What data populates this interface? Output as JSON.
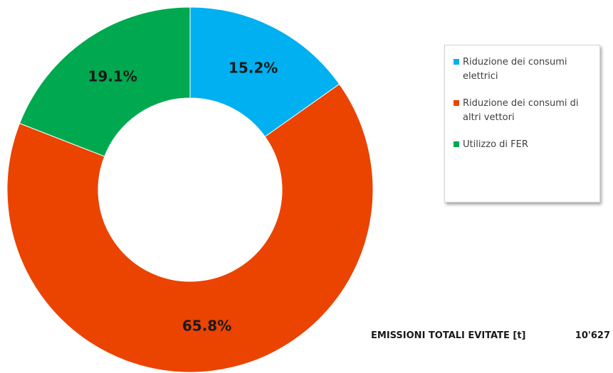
{
  "chart_data": {
    "type": "pie",
    "donut": true,
    "title": "",
    "start_angle_deg": 0,
    "direction": "clockwise",
    "slices": [
      {
        "name": "Riduzione dei consumi elettrici",
        "value": 15.2,
        "label": "15.2%",
        "color": "#00b0f0"
      },
      {
        "name": "Riduzione dei consumi di altri vettori",
        "value": 65.8,
        "label": "65.8%",
        "color": "#ea4400"
      },
      {
        "name": "Utilizzo di FER",
        "value": 19.1,
        "label": "19.1%",
        "color": "#00a84f"
      }
    ],
    "legend_placement": "right"
  },
  "summary": {
    "label": "EMISSIONI TOTALI EVITATE [t]",
    "value": "10'627"
  }
}
